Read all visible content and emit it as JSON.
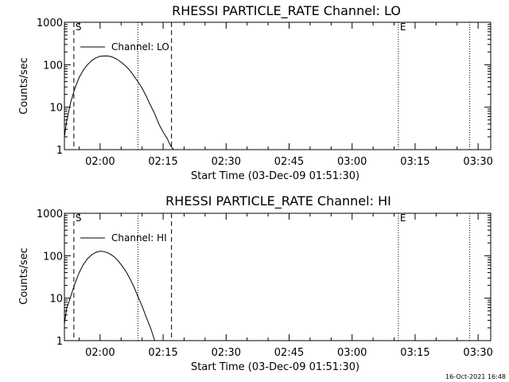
{
  "footer": {
    "timestamp": "16-Oct-2021 16:48"
  },
  "chart_data": [
    {
      "type": "line",
      "title": "RHESSI PARTICLE_RATE Channel: LO",
      "xlabel": "Start Time (03-Dec-09 01:51:30)",
      "ylabel": "Counts/sec",
      "y_scale": "log",
      "xlim": [
        "01:51:30",
        "03:33:00"
      ],
      "ylim": [
        1,
        1000
      ],
      "x_ticks": [
        "02:00",
        "02:15",
        "02:30",
        "02:45",
        "03:00",
        "03:15",
        "03:30"
      ],
      "y_ticks": [
        "1",
        "10",
        "100",
        "1000"
      ],
      "legend": {
        "placement": "top-left",
        "entries": [
          "Channel: LO"
        ]
      },
      "markers": [
        {
          "label": "S",
          "time": "01:53:45",
          "style": "dashed"
        },
        {
          "label": "",
          "time": "02:17:00",
          "style": "dashed"
        },
        {
          "label": "",
          "time": "02:09:00",
          "style": "dotted"
        },
        {
          "label": "E",
          "time": "03:11:00",
          "style": "dotted"
        },
        {
          "label": "",
          "time": "03:28:00",
          "style": "dotted"
        }
      ],
      "series": [
        {
          "name": "Channel: LO",
          "x": [
            "01:51:30",
            "01:52:00",
            "01:53:00",
            "01:54:00",
            "01:55:00",
            "01:56:00",
            "01:57:00",
            "01:58:00",
            "01:59:00",
            "02:00:00",
            "02:01:00",
            "02:02:00",
            "02:03:00",
            "02:04:00",
            "02:05:00",
            "02:06:00",
            "02:07:00",
            "02:08:00",
            "02:09:00",
            "02:10:00",
            "02:11:00",
            "02:12:00",
            "02:13:00",
            "02:14:00",
            "02:15:00",
            "02:16:00",
            "02:16:30",
            "02:17:00",
            "02:17:30"
          ],
          "y": [
            2.0,
            4.5,
            13,
            28,
            50,
            75,
            100,
            125,
            145,
            158,
            162,
            160,
            150,
            135,
            115,
            95,
            75,
            55,
            40,
            28,
            18,
            11,
            7,
            4,
            2.6,
            1.8,
            1.4,
            1.15,
            1.0
          ]
        }
      ]
    },
    {
      "type": "line",
      "title": "RHESSI PARTICLE_RATE Channel: HI",
      "xlabel": "Start Time (03-Dec-09 01:51:30)",
      "ylabel": "Counts/sec",
      "y_scale": "log",
      "xlim": [
        "01:51:30",
        "03:33:00"
      ],
      "ylim": [
        1,
        1000
      ],
      "x_ticks": [
        "02:00",
        "02:15",
        "02:30",
        "02:45",
        "03:00",
        "03:15",
        "03:30"
      ],
      "y_ticks": [
        "1",
        "10",
        "100",
        "1000"
      ],
      "legend": {
        "placement": "top-left",
        "entries": [
          "Channel: HI"
        ]
      },
      "markers": [
        {
          "label": "S",
          "time": "01:53:45",
          "style": "dashed"
        },
        {
          "label": "",
          "time": "02:17:00",
          "style": "dashed"
        },
        {
          "label": "",
          "time": "02:09:00",
          "style": "dotted"
        },
        {
          "label": "E",
          "time": "03:11:00",
          "style": "dotted"
        },
        {
          "label": "",
          "time": "03:28:00",
          "style": "dotted"
        }
      ],
      "series": [
        {
          "name": "Channel: HI",
          "x": [
            "01:51:30",
            "01:52:00",
            "01:53:00",
            "01:54:00",
            "01:55:00",
            "01:56:00",
            "01:57:00",
            "01:58:00",
            "01:59:00",
            "02:00:00",
            "02:01:00",
            "02:02:00",
            "02:03:00",
            "02:04:00",
            "02:05:00",
            "02:06:00",
            "02:07:00",
            "02:08:00",
            "02:09:00",
            "02:10:00",
            "02:11:00",
            "02:12:00",
            "02:13:00"
          ],
          "y": [
            2.5,
            5.5,
            11,
            22,
            40,
            62,
            85,
            105,
            120,
            128,
            125,
            115,
            100,
            82,
            62,
            45,
            30,
            19,
            11,
            6.5,
            3.5,
            2.0,
            1.0
          ]
        }
      ]
    }
  ]
}
